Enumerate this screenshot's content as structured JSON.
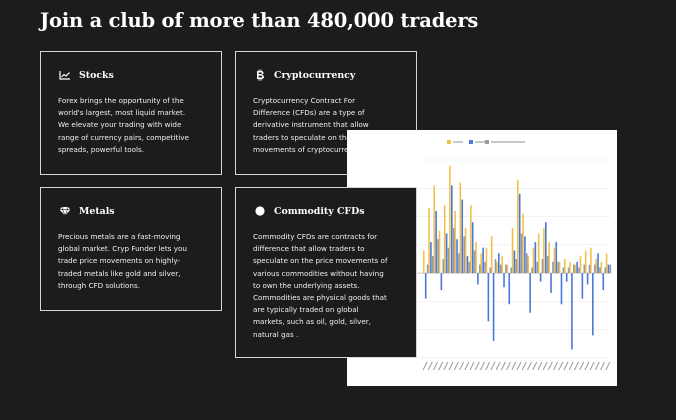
{
  "page": {
    "headline": "Join a club of more than 480,000 traders"
  },
  "cards": [
    {
      "title": "Stocks",
      "icon": "line-chart-icon",
      "body": "Forex brings the opportunity of the\nworld's largest, most liquid market.\nWe elevate your trading with wide\nrange of currency pairs, competitive\nspreads, powerful tools."
    },
    {
      "title": "Cryptocurrency",
      "icon": "bitcoin-icon",
      "body": "Cryptocurrency Contract For\nDifference (CFDs) are a type of\nderivative instrument that allow\ntraders to speculate on the price\nmovements of cryptocurrencies."
    },
    {
      "title": "Metals",
      "icon": "diamond-icon",
      "body": "Precious metals are a fast-moving\nglobal market. Cryp Funder lets you\ntrade price movements on highly-\ntraded metals like gold and silver,\nthrough CFD solutions."
    },
    {
      "title": "Commodity CFDs",
      "icon": "circle-icon",
      "body": "Commodity CFDs are contracts for\ndifference that allow traders to\nspeculate on the price movements of\nvarious commodities without having\nto own the underlying assets.\nCommodities are physical goods that\nare typically traded on global\nmarkets, such as oil, gold, silver,\nnatural gas ."
    }
  ],
  "colors": {
    "background": "#1c1c1f",
    "card_border": "#d6d6d6",
    "series_gold": "#f0c24a",
    "series_blue": "#4a78d8",
    "series_gray": "#9a9aa0"
  },
  "chart_data": {
    "type": "bar",
    "series": [
      {
        "name": "gold",
        "values": [
          0.8,
          2.3,
          3.1,
          1.5,
          2.4,
          3.8,
          2.2,
          3.2,
          1.6,
          2.4,
          1.1,
          0.7,
          0.9,
          1.3,
          0.4,
          0.6,
          0.3,
          1.6,
          3.3,
          2.1,
          0.6,
          0.9,
          1.4,
          1.6,
          1.1,
          0.9,
          0.4,
          0.5,
          0.4,
          0.3,
          0.6,
          0.8,
          0.9,
          0.5,
          0.4,
          0.7
        ]
      },
      {
        "name": "blue",
        "values": [
          -0.9,
          1.1,
          2.2,
          -0.6,
          1.4,
          3.1,
          1.2,
          2.6,
          0.6,
          1.8,
          -0.4,
          0.9,
          -1.7,
          -2.4,
          0.7,
          -0.5,
          -1.1,
          0.8,
          2.8,
          1.3,
          -1.4,
          1.1,
          -0.3,
          1.8,
          -0.7,
          1.1,
          -1.1,
          -0.3,
          -2.7,
          0.4,
          -0.9,
          -0.4,
          -2.2,
          0.7,
          -0.6,
          0.3
        ]
      },
      {
        "name": "gray",
        "values": [
          0.3,
          0.6,
          1.2,
          0.5,
          0.9,
          1.6,
          0.7,
          1.3,
          0.4,
          0.8,
          0.3,
          0.4,
          0.2,
          0.5,
          0.3,
          0.3,
          0.2,
          0.5,
          1.4,
          0.7,
          0.2,
          0.4,
          0.5,
          0.6,
          0.4,
          0.4,
          0.2,
          0.2,
          0.3,
          0.2,
          0.3,
          0.3,
          0.3,
          0.2,
          0.2,
          0.3
        ]
      }
    ],
    "ylim": [
      -3,
      4
    ]
  }
}
